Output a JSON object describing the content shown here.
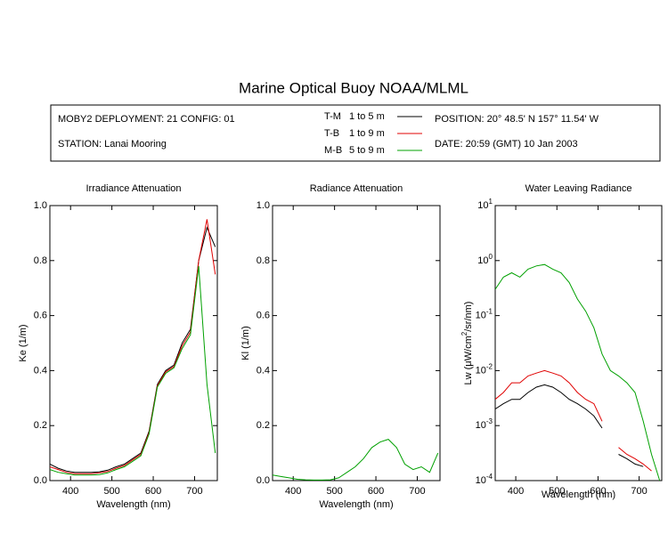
{
  "header": {
    "title": "Marine Optical Buoy NOAA/MLML",
    "deployment": "MOBY2 DEPLOYMENT: 21 CONFIG: 01",
    "station": "STATION: Lanai Mooring",
    "position": "POSITION: 20° 48.5' N   157° 11.54' W",
    "date": "DATE: 20:59 (GMT) 10 Jan 2003",
    "legend": [
      {
        "name": "T-M",
        "range": "1 to 5  m",
        "color": "#000000"
      },
      {
        "name": "T-B",
        "range": "1 to 9  m",
        "color": "#e00000"
      },
      {
        "name": "M-B",
        "range": "5 to 9  m",
        "color": "#00a000"
      }
    ]
  },
  "chart_data": [
    {
      "type": "line",
      "title": "Irradiance Attenuation",
      "x_label": "Wavelength (nm)",
      "y_label": "Ke  (1/m)",
      "xlim": [
        350,
        755
      ],
      "xticks": [
        400,
        500,
        600,
        700
      ],
      "ylim": [
        0,
        1
      ],
      "yticks": [
        {
          "value": 0,
          "label": "0.0"
        },
        {
          "value": 0.2,
          "label": "0.2"
        },
        {
          "value": 0.4,
          "label": "0.4"
        },
        {
          "value": 0.6,
          "label": "0.6"
        },
        {
          "value": 0.8,
          "label": "0.8"
        },
        {
          "value": 1,
          "label": "1.0"
        }
      ],
      "x": [
        350,
        370,
        390,
        410,
        430,
        450,
        470,
        490,
        510,
        530,
        550,
        570,
        590,
        610,
        630,
        650,
        670,
        690,
        710,
        730,
        750
      ],
      "series": [
        {
          "color": "#000000",
          "values": [
            0.06,
            0.045,
            0.035,
            0.03,
            0.03,
            0.03,
            0.032,
            0.038,
            0.05,
            0.06,
            0.08,
            0.1,
            0.18,
            0.35,
            0.4,
            0.42,
            0.5,
            0.55,
            0.8,
            0.92,
            0.85
          ]
        },
        {
          "color": "#e00000",
          "values": [
            0.05,
            0.04,
            0.03,
            0.025,
            0.025,
            0.025,
            0.028,
            0.033,
            0.045,
            0.055,
            0.075,
            0.095,
            0.175,
            0.345,
            0.395,
            0.415,
            0.49,
            0.54,
            0.8,
            0.95,
            0.75
          ]
        },
        {
          "color": "#00a000",
          "values": [
            0.04,
            0.03,
            0.025,
            0.02,
            0.02,
            0.02,
            0.022,
            0.028,
            0.04,
            0.05,
            0.07,
            0.09,
            0.17,
            0.34,
            0.39,
            0.41,
            0.48,
            0.53,
            0.78,
            0.35,
            0.1
          ]
        }
      ]
    },
    {
      "type": "line",
      "title": "Radiance Attenuation",
      "x_label": "Wavelength (nm)",
      "y_label": "Kl  (1/m)",
      "xlim": [
        350,
        755
      ],
      "xticks": [
        400,
        500,
        600,
        700
      ],
      "ylim": [
        0,
        1
      ],
      "yticks": [
        {
          "value": 0,
          "label": "0.0"
        },
        {
          "value": 0.2,
          "label": "0.2"
        },
        {
          "value": 0.4,
          "label": "0.4"
        },
        {
          "value": 0.6,
          "label": "0.6"
        },
        {
          "value": 0.8,
          "label": "0.8"
        },
        {
          "value": 1,
          "label": "1.0"
        }
      ],
      "x": [
        350,
        370,
        390,
        410,
        430,
        450,
        470,
        490,
        510,
        530,
        550,
        570,
        590,
        610,
        630,
        650,
        670,
        690,
        710,
        730,
        750
      ],
      "series": [
        {
          "color": "#00a000",
          "values": [
            0.02,
            0.015,
            0.01,
            0.005,
            0.003,
            0.002,
            0.002,
            0.003,
            0.01,
            0.03,
            0.05,
            0.08,
            0.12,
            0.14,
            0.15,
            0.12,
            0.06,
            0.04,
            0.05,
            0.03,
            0.1
          ]
        }
      ]
    },
    {
      "type": "line",
      "title": "Water Leaving Radiance",
      "x_label": "Wavelength (nm)",
      "y_label_parts": [
        "Lw  (μW/cm",
        "2",
        "/sr/nm)"
      ],
      "xlim": [
        350,
        755
      ],
      "xticks": [
        400,
        500,
        600,
        700
      ],
      "log_y": true,
      "ylim": [
        0.0001,
        10
      ],
      "yticks": [
        {
          "value": 10,
          "label": "10",
          "sup": "1"
        },
        {
          "value": 1,
          "label": "10",
          "sup": "0"
        },
        {
          "value": 0.1,
          "label": "10",
          "sup": "-1"
        },
        {
          "value": 0.01,
          "label": "10",
          "sup": "-2"
        },
        {
          "value": 0.001,
          "label": "10",
          "sup": "-3"
        },
        {
          "value": 0.0001,
          "label": "10",
          "sup": "-4"
        }
      ],
      "x": [
        350,
        370,
        390,
        410,
        430,
        450,
        470,
        490,
        510,
        530,
        550,
        570,
        590,
        610,
        630,
        650,
        670,
        690,
        710,
        730,
        750
      ],
      "series": [
        {
          "color": "#000000",
          "values": [
            0.002,
            0.0025,
            0.003,
            0.003,
            0.004,
            0.005,
            0.0055,
            0.005,
            0.004,
            0.003,
            0.0025,
            0.002,
            0.0015,
            0.0009,
            null,
            0.0003,
            0.00025,
            0.0002,
            0.00018,
            null,
            null
          ]
        },
        {
          "color": "#e00000",
          "values": [
            0.003,
            0.004,
            0.006,
            0.006,
            0.008,
            0.009,
            0.01,
            0.009,
            0.008,
            0.006,
            0.004,
            0.003,
            0.0025,
            0.0012,
            null,
            0.0004,
            0.0003,
            0.00025,
            0.0002,
            0.00015,
            null
          ]
        },
        {
          "color": "#00a000",
          "values": [
            0.3,
            0.5,
            0.6,
            0.5,
            0.7,
            0.8,
            0.85,
            0.7,
            0.6,
            0.4,
            0.2,
            0.12,
            0.06,
            0.02,
            0.01,
            0.008,
            0.006,
            0.004,
            0.0012,
            0.0003,
            0.0001
          ]
        }
      ]
    }
  ]
}
